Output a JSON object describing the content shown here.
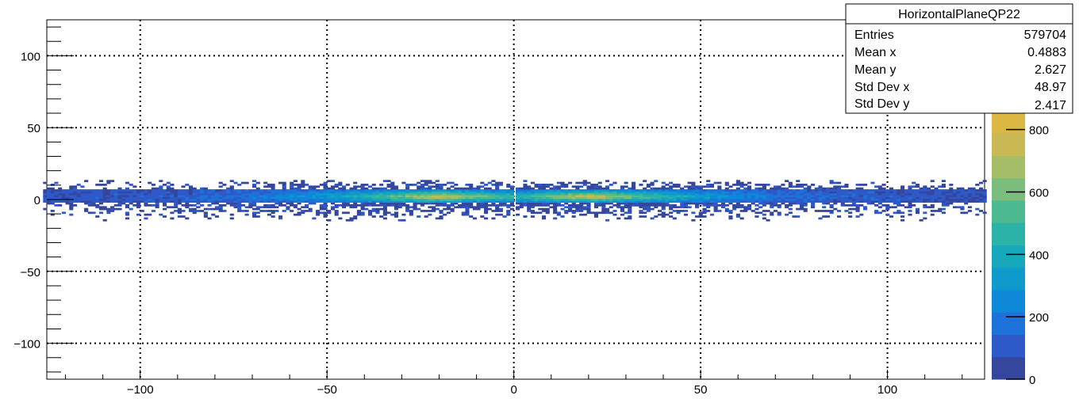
{
  "chart_data": {
    "type": "heatmap",
    "title": "",
    "xlabel": "",
    "ylabel": "",
    "xlim": [
      -125,
      126
    ],
    "ylim": [
      -125,
      125
    ],
    "x_ticks": [
      -100,
      -50,
      0,
      50,
      100
    ],
    "y_ticks": [
      -100,
      -50,
      0,
      50,
      100
    ],
    "x_tick_labels": [
      "−100",
      "−50",
      "0",
      "50",
      "100"
    ],
    "y_tick_labels": [
      "−100",
      "−50",
      "0",
      "50",
      "100"
    ],
    "grid": true,
    "colorbar": {
      "range": [
        0,
        860
      ],
      "ticks": [
        0,
        200,
        400,
        600,
        800
      ],
      "tick_labels": [
        "0",
        "200",
        "400",
        "600",
        "800"
      ],
      "palette": [
        "#35479c",
        "#2e59c8",
        "#1d72d9",
        "#0e88d8",
        "#0f9acc",
        "#17a8bb",
        "#2ab3a6",
        "#4db991",
        "#7bbd7c",
        "#a6bd67",
        "#c9b954",
        "#dbb744"
      ]
    },
    "bands": [
      {
        "x_range": [
          -126,
          -0.5
        ],
        "peak_x": -20,
        "y_core": [
          -3,
          6
        ],
        "y_extent": [
          -15,
          13
        ]
      },
      {
        "x_range": [
          0.5,
          126
        ],
        "peak_x": 20,
        "y_core": [
          -3,
          6
        ],
        "y_extent": [
          -15,
          13
        ]
      }
    ],
    "stats_box": {
      "title": "HorizontalPlaneQP22",
      "rows": [
        {
          "label": "Entries",
          "value": "579704"
        },
        {
          "label": "Mean x",
          "value": "0.4883"
        },
        {
          "label": "Mean y",
          "value": "2.627"
        },
        {
          "label": "Std Dev x",
          "value": "48.97"
        },
        {
          "label": "Std Dev y",
          "value": "2.417"
        }
      ]
    }
  }
}
